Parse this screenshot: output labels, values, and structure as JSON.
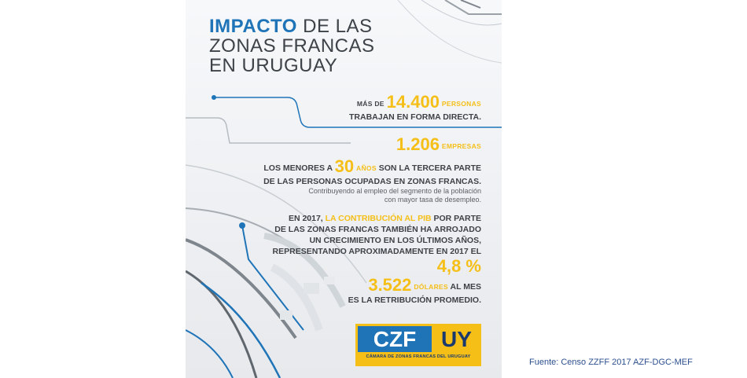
{
  "poster": {
    "title": {
      "highlight": "IMPACTO",
      "line1_rest": "DE LAS",
      "line2": "ZONAS FRANCAS",
      "line3": "EN URUGUAY"
    },
    "stats": {
      "workers": {
        "prefix": "MÁS DE",
        "number": "14.400",
        "unit": "PERSONAS",
        "line2": "TRABAJAN EN FORMA DIRECTA."
      },
      "companies": {
        "number": "1.206",
        "unit": "EMPRESAS"
      },
      "youth": {
        "prefix": "LOS MENORES A",
        "number": "30",
        "unit": "AÑOS",
        "rest": "SON LA TERCERA PARTE",
        "line2": "DE LAS PERSONAS OCUPADAS EN ZONAS FRANCAS.",
        "note1": "Contribuyendo al empleo del segmento de la población",
        "note2": "con mayor tasa de desempleo."
      },
      "pib": {
        "prefix": "EN 2017,",
        "highlight": "LA CONTRIBUCIÓN AL PIB",
        "rest": "POR PARTE",
        "line2": "DE LAS ZONAS FRANCAS TAMBIÉN HA ARROJADO",
        "line3": "UN CRECIMIENTO EN LOS ÚLTIMOS AÑOS,",
        "line4": "REPRESENTANDO APROXIMADAMENTE EN 2017 EL",
        "number": "4,8 %"
      },
      "salary": {
        "number": "3.522",
        "unit": "DÓLARES",
        "rest": "AL MES",
        "line2": "ES LA RETRIBUCIÓN PROMEDIO."
      }
    },
    "logo": {
      "left": "CZF",
      "right": "UY",
      "subtitle": "CÁMARA DE ZONAS FRANCAS DEL URUGUAY"
    }
  },
  "source": "Fuente: Censo ZZFF 2017 AZF-DGC-MEF",
  "colors": {
    "brand_blue": "#1f74b8",
    "brand_yellow": "#f5bf18",
    "text_dark": "#3e4247",
    "source_text": "#2c4f8f"
  }
}
